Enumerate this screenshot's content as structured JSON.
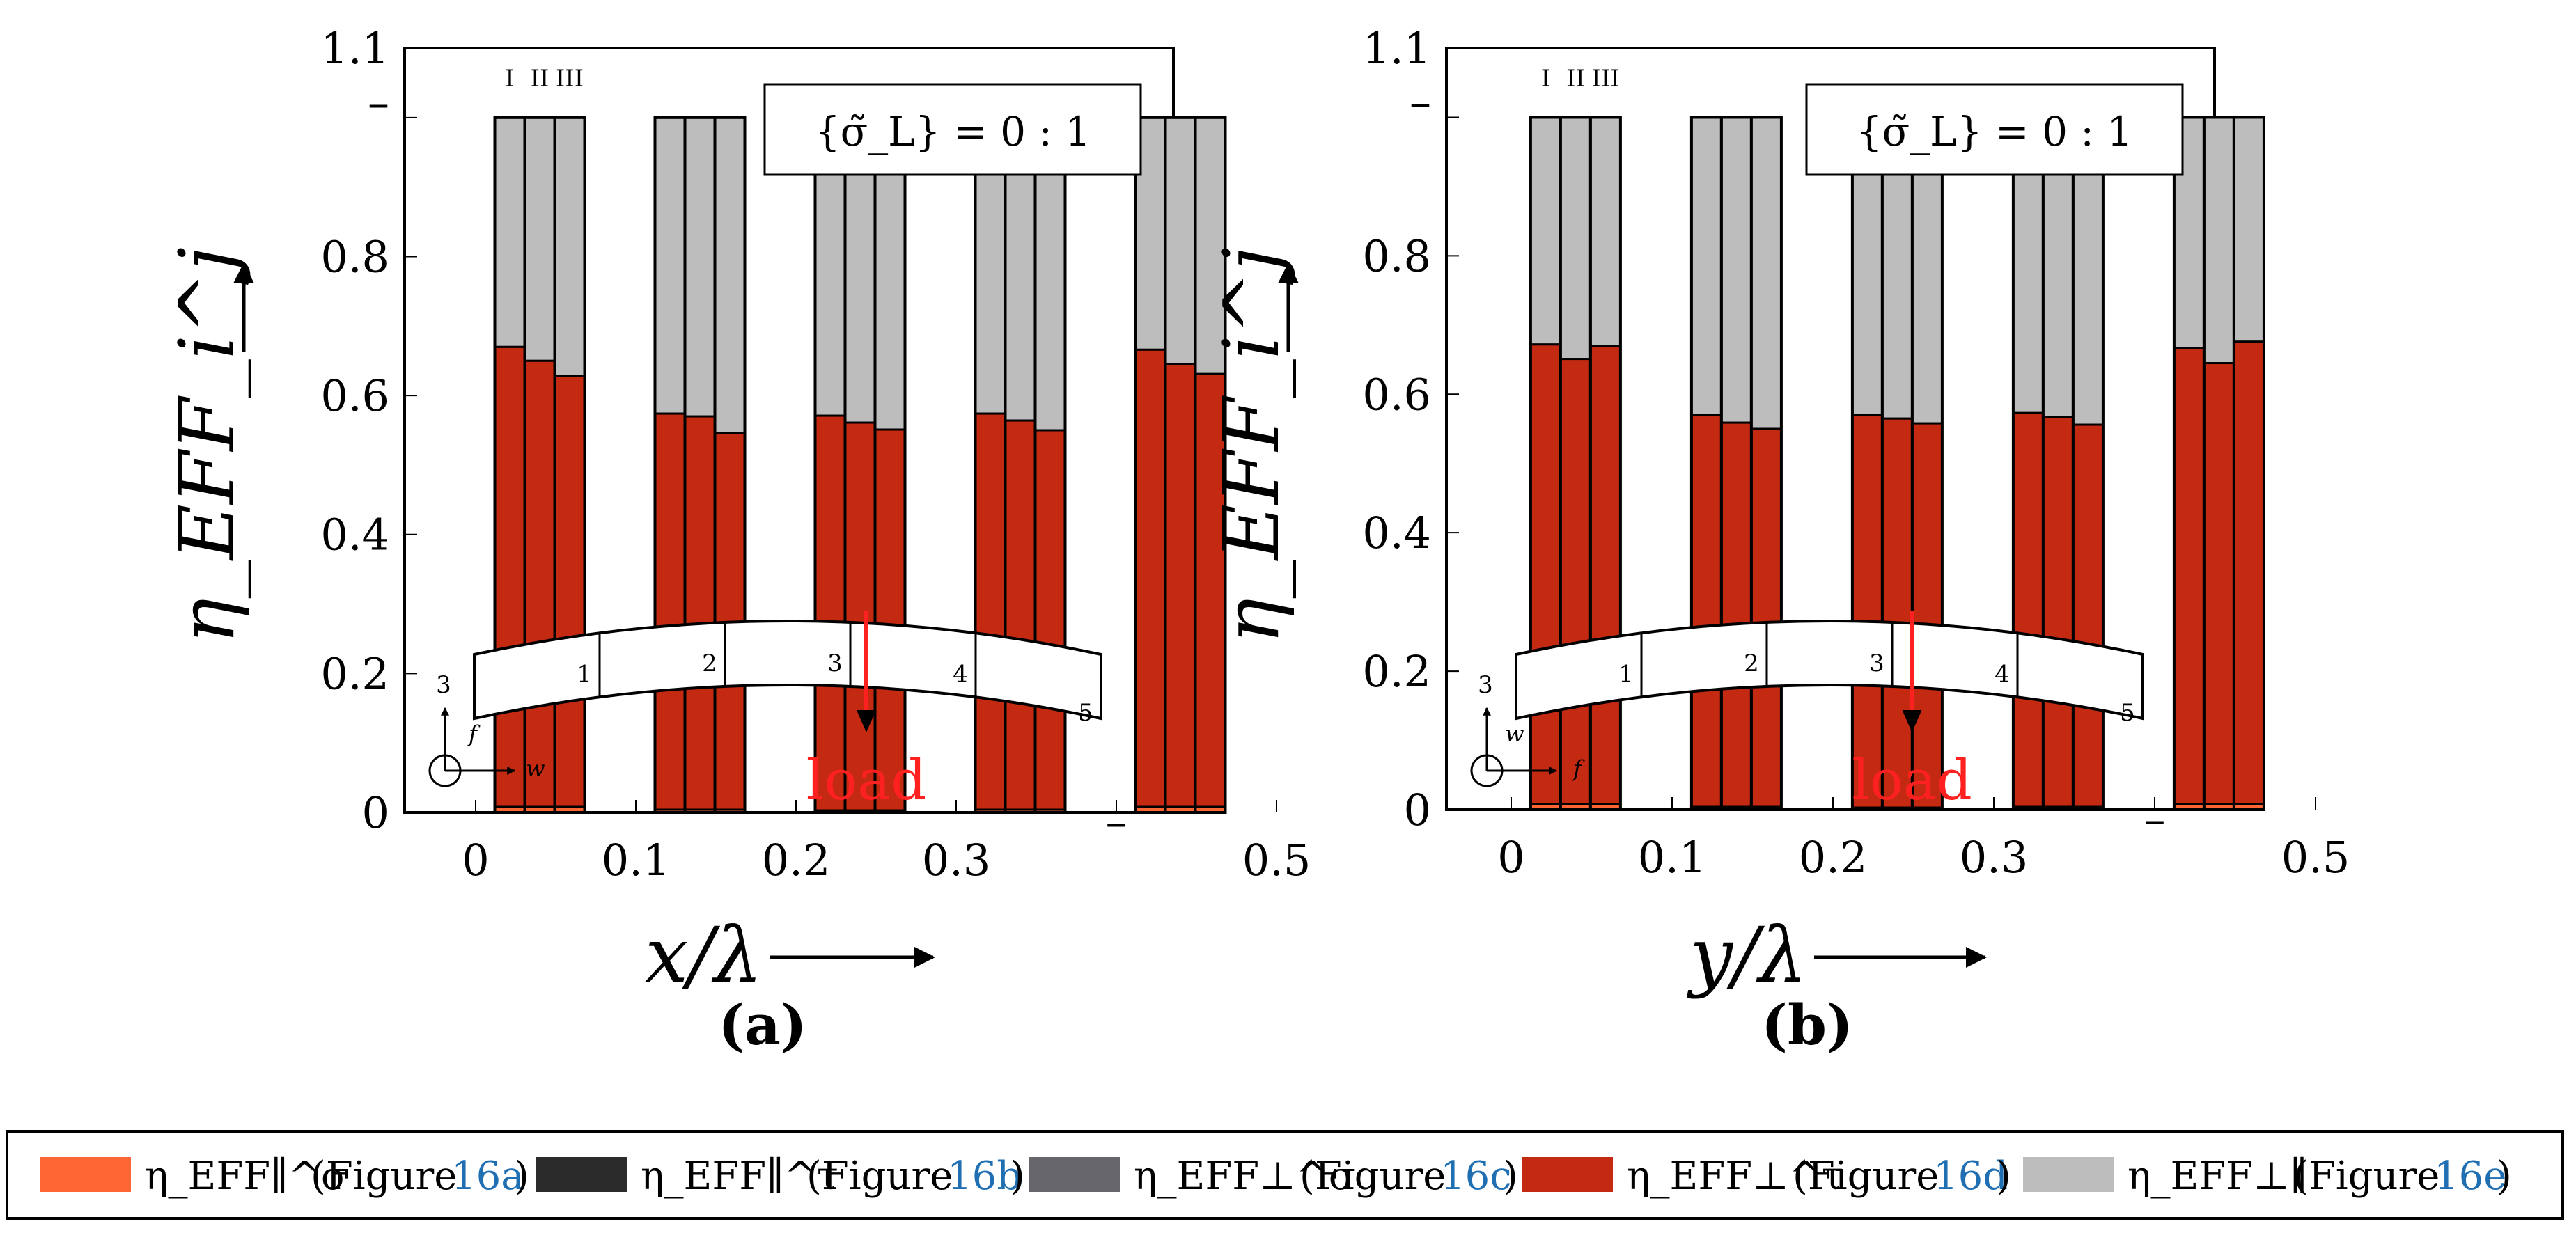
{
  "chart_data": [
    {
      "type": "bar",
      "stacked": true,
      "panel_label": "(a)",
      "xlabel": "x/λ",
      "ylabel": "η_EFF_i^j",
      "x_ticks": [
        "0",
        "0.1",
        "0.2",
        "0.3",
        "–",
        "0.5"
      ],
      "y_ticks": [
        "0",
        "0.2",
        "0.4",
        "0.6",
        "0.8",
        "–",
        "1.1"
      ],
      "ylim": [
        0,
        1.1
      ],
      "bar_labels": [
        "I",
        "II",
        "III"
      ],
      "annotation": "{σ̃_L} = 0 : 1",
      "load_label": "load",
      "segment_labels": [
        "1",
        "2",
        "3",
        "4",
        "5"
      ],
      "coordinate_labels": [
        "3",
        "f",
        "w"
      ],
      "groups": [
        {
          "center": 0.04,
          "bars": [
            {
              "sigma_par": 0.008,
              "tau_par": 0.0,
              "sigma_perp": 0.0,
              "tau_perp": 0.662,
              "perp_par": 0.33
            },
            {
              "sigma_par": 0.008,
              "tau_par": 0.0,
              "sigma_perp": 0.0,
              "tau_perp": 0.642,
              "perp_par": 0.35
            },
            {
              "sigma_par": 0.008,
              "tau_par": 0.0,
              "sigma_perp": 0.0,
              "tau_perp": 0.62,
              "perp_par": 0.372
            }
          ]
        },
        {
          "center": 0.14,
          "bars": [
            {
              "sigma_par": 0.004,
              "tau_par": 0.0,
              "sigma_perp": 0.0,
              "tau_perp": 0.57,
              "perp_par": 0.426
            },
            {
              "sigma_par": 0.004,
              "tau_par": 0.0,
              "sigma_perp": 0.0,
              "tau_perp": 0.566,
              "perp_par": 0.43
            },
            {
              "sigma_par": 0.004,
              "tau_par": 0.0,
              "sigma_perp": 0.0,
              "tau_perp": 0.542,
              "perp_par": 0.454
            }
          ]
        },
        {
          "center": 0.24,
          "bars": [
            {
              "sigma_par": 0.003,
              "tau_par": 0.0,
              "sigma_perp": 0.0,
              "tau_perp": 0.568,
              "perp_par": 0.429
            },
            {
              "sigma_par": 0.003,
              "tau_par": 0.0,
              "sigma_perp": 0.0,
              "tau_perp": 0.558,
              "perp_par": 0.439
            },
            {
              "sigma_par": 0.003,
              "tau_par": 0.0,
              "sigma_perp": 0.0,
              "tau_perp": 0.548,
              "perp_par": 0.449
            }
          ]
        },
        {
          "center": 0.34,
          "bars": [
            {
              "sigma_par": 0.004,
              "tau_par": 0.0,
              "sigma_perp": 0.0,
              "tau_perp": 0.57,
              "perp_par": 0.426
            },
            {
              "sigma_par": 0.004,
              "tau_par": 0.0,
              "sigma_perp": 0.0,
              "tau_perp": 0.56,
              "perp_par": 0.436
            },
            {
              "sigma_par": 0.004,
              "tau_par": 0.0,
              "sigma_perp": 0.0,
              "tau_perp": 0.546,
              "perp_par": 0.45
            }
          ]
        },
        {
          "center": 0.44,
          "bars": [
            {
              "sigma_par": 0.008,
              "tau_par": 0.0,
              "sigma_perp": 0.0,
              "tau_perp": 0.658,
              "perp_par": 0.334
            },
            {
              "sigma_par": 0.008,
              "tau_par": 0.0,
              "sigma_perp": 0.0,
              "tau_perp": 0.637,
              "perp_par": 0.355
            },
            {
              "sigma_par": 0.008,
              "tau_par": 0.0,
              "sigma_perp": 0.0,
              "tau_perp": 0.623,
              "perp_par": 0.369
            }
          ]
        }
      ]
    },
    {
      "type": "bar",
      "stacked": true,
      "panel_label": "(b)",
      "xlabel": "y/λ",
      "ylabel": "η_EFF_i^j",
      "x_ticks": [
        "0",
        "0.1",
        "0.2",
        "0.3",
        "–",
        "0.5"
      ],
      "y_ticks": [
        "0",
        "0.2",
        "0.4",
        "0.6",
        "0.8",
        "–",
        "1.1"
      ],
      "ylim": [
        0,
        1.1
      ],
      "bar_labels": [
        "I",
        "II",
        "III"
      ],
      "annotation": "{σ̃_L} = 0 : 1",
      "load_label": "load",
      "segment_labels": [
        "1",
        "2",
        "3",
        "4",
        "5"
      ],
      "coordinate_labels": [
        "3",
        "w",
        "f"
      ],
      "groups": [
        {
          "center": 0.04,
          "bars": [
            {
              "sigma_par": 0.008,
              "tau_par": 0.0,
              "sigma_perp": 0.0,
              "tau_perp": 0.664,
              "perp_par": 0.328
            },
            {
              "sigma_par": 0.008,
              "tau_par": 0.0,
              "sigma_perp": 0.0,
              "tau_perp": 0.643,
              "perp_par": 0.349
            },
            {
              "sigma_par": 0.008,
              "tau_par": 0.0,
              "sigma_perp": 0.0,
              "tau_perp": 0.662,
              "perp_par": 0.33
            }
          ]
        },
        {
          "center": 0.14,
          "bars": [
            {
              "sigma_par": 0.004,
              "tau_par": 0.0,
              "sigma_perp": 0.0,
              "tau_perp": 0.566,
              "perp_par": 0.43
            },
            {
              "sigma_par": 0.004,
              "tau_par": 0.0,
              "sigma_perp": 0.0,
              "tau_perp": 0.555,
              "perp_par": 0.441
            },
            {
              "sigma_par": 0.004,
              "tau_par": 0.0,
              "sigma_perp": 0.0,
              "tau_perp": 0.546,
              "perp_par": 0.45
            }
          ]
        },
        {
          "center": 0.24,
          "bars": [
            {
              "sigma_par": 0.003,
              "tau_par": 0.0,
              "sigma_perp": 0.0,
              "tau_perp": 0.567,
              "perp_par": 0.43
            },
            {
              "sigma_par": 0.003,
              "tau_par": 0.0,
              "sigma_perp": 0.0,
              "tau_perp": 0.562,
              "perp_par": 0.435
            },
            {
              "sigma_par": 0.003,
              "tau_par": 0.0,
              "sigma_perp": 0.0,
              "tau_perp": 0.555,
              "perp_par": 0.442
            }
          ]
        },
        {
          "center": 0.34,
          "bars": [
            {
              "sigma_par": 0.004,
              "tau_par": 0.0,
              "sigma_perp": 0.0,
              "tau_perp": 0.569,
              "perp_par": 0.427
            },
            {
              "sigma_par": 0.004,
              "tau_par": 0.0,
              "sigma_perp": 0.0,
              "tau_perp": 0.563,
              "perp_par": 0.433
            },
            {
              "sigma_par": 0.004,
              "tau_par": 0.0,
              "sigma_perp": 0.0,
              "tau_perp": 0.552,
              "perp_par": 0.444
            }
          ]
        },
        {
          "center": 0.44,
          "bars": [
            {
              "sigma_par": 0.008,
              "tau_par": 0.0,
              "sigma_perp": 0.0,
              "tau_perp": 0.659,
              "perp_par": 0.333
            },
            {
              "sigma_par": 0.008,
              "tau_par": 0.0,
              "sigma_perp": 0.0,
              "tau_perp": 0.637,
              "perp_par": 0.355
            },
            {
              "sigma_par": 0.008,
              "tau_par": 0.0,
              "sigma_perp": 0.0,
              "tau_perp": 0.668,
              "perp_par": 0.324
            }
          ]
        }
      ]
    }
  ],
  "legend": [
    {
      "key": "sigma_par",
      "symbol": "η_EFF∥^σ",
      "prefix": "(Figure ",
      "ref": "16a",
      "suffix": ")",
      "color": "#ff6633"
    },
    {
      "key": "tau_par",
      "symbol": "η_EFF∥^τ",
      "prefix": "(Figure ",
      "ref": "16b",
      "suffix": ")",
      "color": "#2b2b2b"
    },
    {
      "key": "sigma_perp",
      "symbol": "η_EFF⊥^σ",
      "prefix": "(Figure ",
      "ref": "16c",
      "suffix": ")",
      "color": "#66666b"
    },
    {
      "key": "tau_perp",
      "symbol": "η_EFF⊥^τ",
      "prefix": "(Figure ",
      "ref": "16d",
      "suffix": ")",
      "color": "#c42a12"
    },
    {
      "key": "perp_par",
      "symbol": "η_EFF⊥∥",
      "prefix": "(Figure ",
      "ref": "16e",
      "suffix": ")",
      "color": "#bdbdbd"
    }
  ],
  "colors": {
    "sigma_par": "#ff6633",
    "tau_par": "#2b2b2b",
    "sigma_perp": "#66666b",
    "tau_perp": "#c42a12",
    "perp_par": "#bdbdbd",
    "load": "#ff2020"
  }
}
